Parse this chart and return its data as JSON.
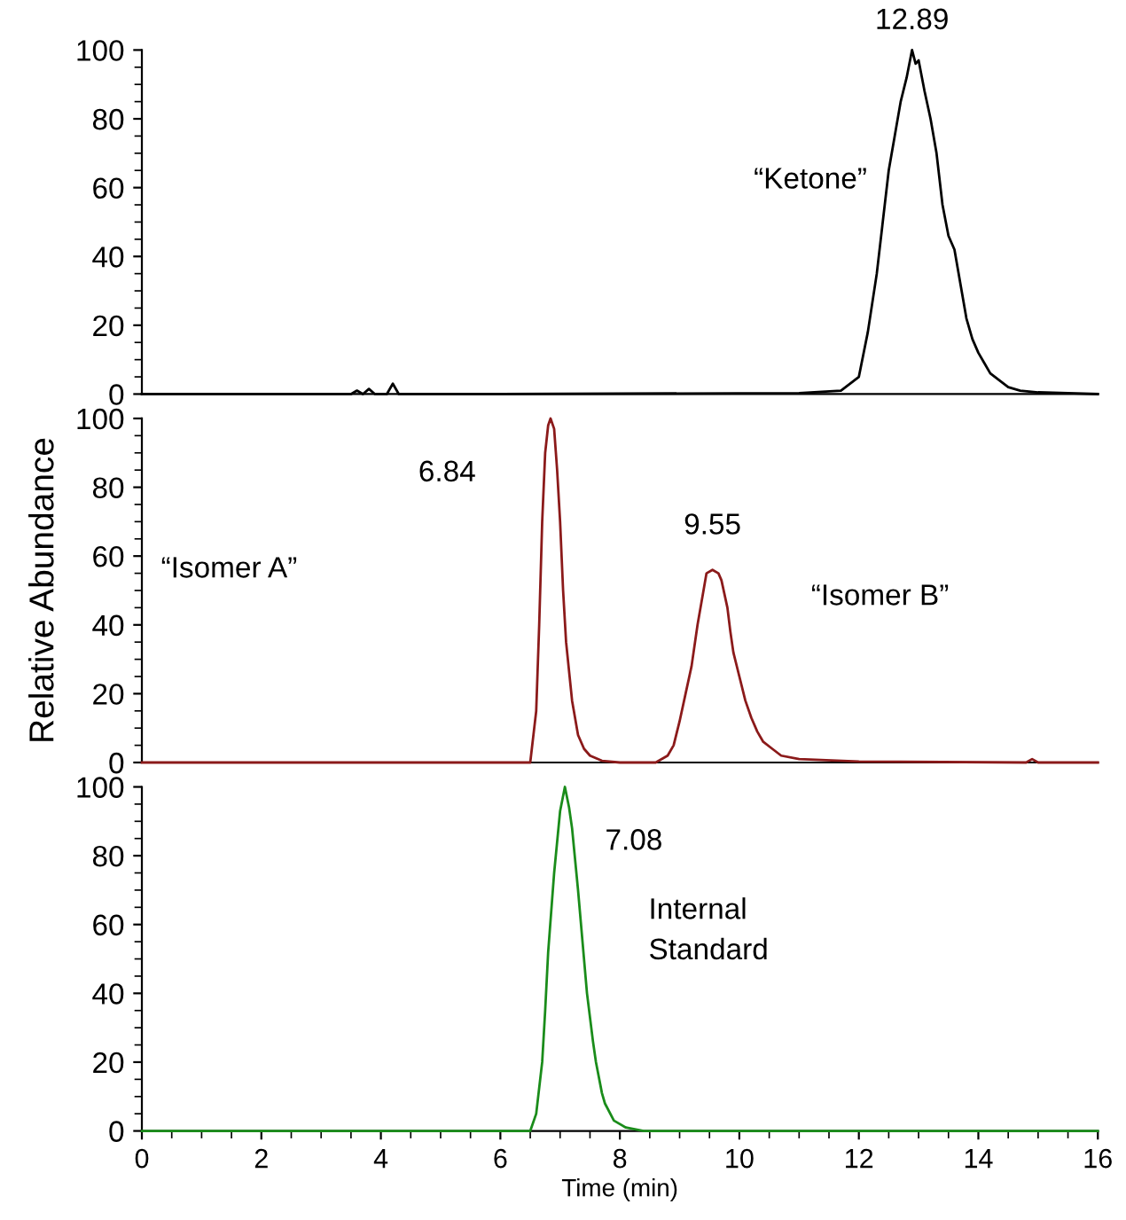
{
  "chart_data": [
    {
      "type": "line",
      "tick_labels": "y",
      "xlim": [
        0,
        16
      ],
      "xticks": [
        0,
        2,
        4,
        6,
        8,
        10,
        12,
        14,
        16
      ],
      "ylim": [
        0,
        100
      ],
      "yticks": [
        0,
        20,
        40,
        60,
        80,
        100
      ],
      "series": [
        {
          "color": "#000000",
          "x": [
            0,
            3.5,
            3.6,
            3.7,
            3.8,
            3.9,
            4.1,
            4.2,
            4.3,
            4.5,
            6,
            11,
            11.7,
            12.0,
            12.15,
            12.3,
            12.4,
            12.5,
            12.6,
            12.7,
            12.8,
            12.89,
            12.95,
            13.0,
            13.1,
            13.2,
            13.3,
            13.4,
            13.5,
            13.6,
            13.7,
            13.8,
            13.9,
            14.0,
            14.1,
            14.2,
            14.35,
            14.5,
            14.7,
            15.0,
            15.5,
            16
          ],
          "values": [
            0,
            0,
            1,
            0,
            1.5,
            0,
            0,
            3,
            0,
            0,
            0,
            0.3,
            1,
            5,
            18,
            35,
            50,
            65,
            75,
            85,
            92,
            100,
            96,
            97,
            88,
            80,
            70,
            55,
            46,
            42,
            32,
            22,
            16,
            12,
            9,
            6,
            4,
            2,
            1,
            0.5,
            0.3,
            0
          ]
        }
      ],
      "annotations": [
        {
          "text": "12.89",
          "x": 12.89,
          "y": 100
        },
        "“Ketone”"
      ]
    },
    {
      "type": "line",
      "tick_labels": "y",
      "ylabel": "Relative Abundance",
      "xlim": [
        0,
        16
      ],
      "xticks": [
        0,
        2,
        4,
        6,
        8,
        10,
        12,
        14,
        16
      ],
      "ylim": [
        0,
        100
      ],
      "yticks": [
        0,
        20,
        40,
        60,
        80,
        100
      ],
      "series": [
        {
          "color": "#8b1a1a",
          "x": [
            0,
            6.4,
            6.5,
            6.6,
            6.65,
            6.7,
            6.75,
            6.8,
            6.84,
            6.9,
            6.95,
            7.0,
            7.05,
            7.1,
            7.2,
            7.3,
            7.4,
            7.5,
            7.7,
            8.0,
            8.6,
            8.8,
            8.9,
            9.0,
            9.1,
            9.2,
            9.3,
            9.4,
            9.45,
            9.55,
            9.65,
            9.7,
            9.8,
            9.85,
            9.9,
            10.0,
            10.1,
            10.2,
            10.3,
            10.4,
            10.55,
            10.7,
            11.0,
            12.0,
            14.8,
            14.9,
            15.0,
            16
          ],
          "values": [
            0,
            0,
            0,
            15,
            40,
            70,
            90,
            98,
            100,
            97,
            85,
            70,
            50,
            35,
            18,
            8,
            4,
            2,
            0.5,
            0,
            0,
            2,
            5,
            12,
            20,
            28,
            40,
            50,
            55,
            56,
            55,
            53,
            45,
            38,
            32,
            25,
            18,
            13,
            9,
            6,
            4,
            2,
            1,
            0.3,
            0,
            1,
            0,
            0
          ]
        }
      ],
      "annotations": [
        {
          "text": "6.84",
          "x": 6.84,
          "y": 100
        },
        {
          "text": "9.55",
          "x": 9.55,
          "y": 56
        },
        "“Isomer A”",
        "“Isomer B”"
      ]
    },
    {
      "type": "line",
      "xlabel": "Time (min)",
      "xlim": [
        0,
        16
      ],
      "xticks": [
        0,
        2,
        4,
        6,
        8,
        10,
        12,
        14,
        16
      ],
      "ylim": [
        0,
        100
      ],
      "yticks": [
        0,
        20,
        40,
        60,
        80,
        100
      ],
      "series": [
        {
          "color": "#1a8c1a",
          "x": [
            0,
            6.5,
            6.6,
            6.7,
            6.75,
            6.8,
            6.9,
            7.0,
            7.08,
            7.15,
            7.2,
            7.3,
            7.4,
            7.45,
            7.55,
            7.6,
            7.7,
            7.75,
            7.9,
            8.1,
            8.4,
            16
          ],
          "values": [
            0,
            0,
            5,
            20,
            35,
            52,
            75,
            93,
            100,
            94,
            88,
            70,
            50,
            40,
            26,
            20,
            11,
            8,
            3,
            1,
            0,
            0
          ]
        }
      ],
      "annotations": [
        {
          "text": "7.08",
          "x": 7.08,
          "y": 100
        },
        "Internal\nStandard"
      ]
    }
  ]
}
